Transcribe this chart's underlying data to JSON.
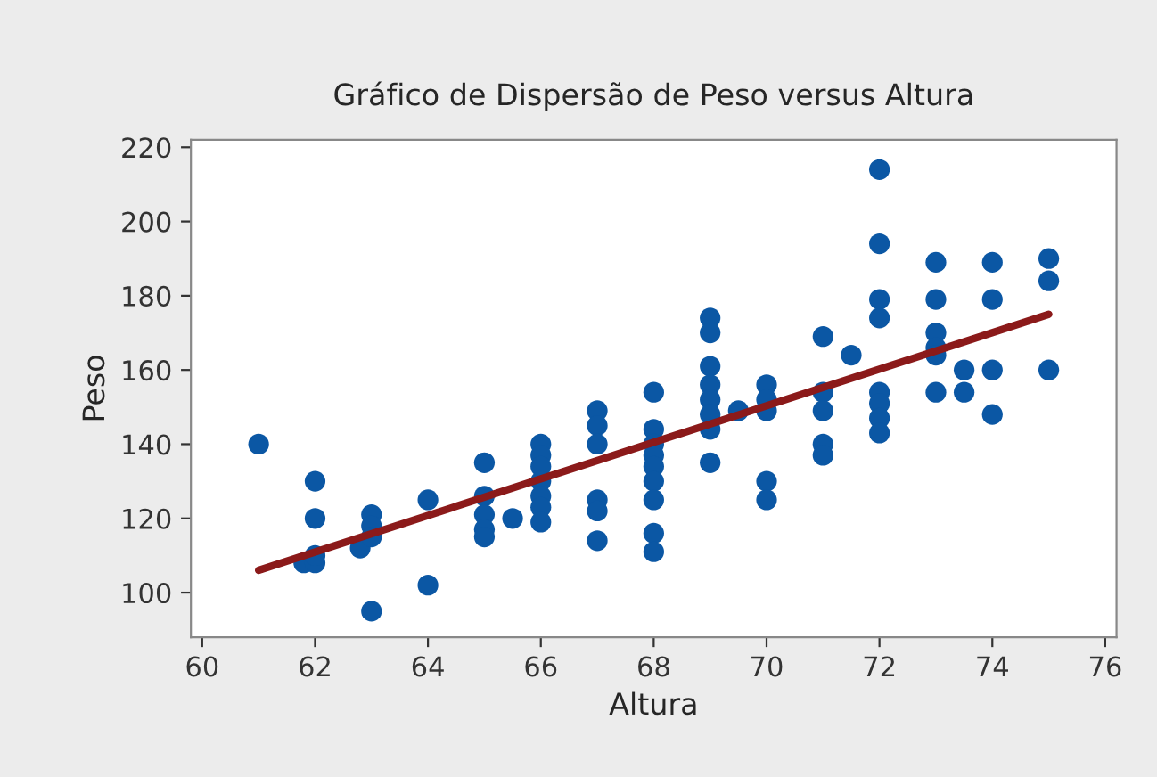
{
  "chart_data": {
    "type": "scatter",
    "title": "Gráfico de Dispersão de Peso versus Altura",
    "xlabel": "Altura",
    "ylabel": "Peso",
    "xlim": [
      59.8,
      76.2
    ],
    "xticks": [
      60,
      62,
      64,
      66,
      68,
      70,
      72,
      74,
      76
    ],
    "ylim": [
      88,
      222
    ],
    "yticks": [
      100,
      120,
      140,
      160,
      180,
      200,
      220
    ],
    "grid": false,
    "legend": false,
    "series": [
      {
        "marker": "circle",
        "color": "#0b57a4",
        "x": [
          61,
          61.8,
          62,
          62,
          62,
          62,
          62.8,
          63,
          63,
          63,
          63,
          64,
          64,
          65,
          65,
          65,
          65,
          65,
          65.5,
          66,
          66,
          66,
          66,
          66,
          66,
          66,
          67,
          67,
          67,
          67,
          67,
          67,
          68,
          68,
          68,
          68,
          68,
          68,
          68,
          68,
          68,
          69,
          69,
          69,
          69,
          69,
          69,
          69,
          69,
          69.5,
          70,
          70,
          70,
          70,
          70,
          71,
          71,
          71,
          71,
          71,
          71.5,
          72,
          72,
          72,
          72,
          72,
          72,
          72,
          72,
          73,
          73,
          73,
          73,
          73,
          73,
          73.5,
          73.5,
          74,
          74,
          74,
          74,
          75,
          75,
          75
        ],
        "values": [
          140,
          108,
          108,
          110,
          120,
          130,
          112,
          121,
          118,
          115,
          95,
          125,
          102,
          135,
          126,
          121,
          117,
          115,
          120,
          140,
          137,
          134,
          130,
          126,
          123,
          119,
          149,
          145,
          140,
          125,
          122,
          114,
          154,
          144,
          140,
          137,
          134,
          130,
          125,
          116,
          111,
          174,
          170,
          161,
          156,
          152,
          148,
          144,
          135,
          149,
          156,
          152,
          149,
          130,
          125,
          169,
          154,
          149,
          140,
          137,
          164,
          214,
          194,
          179,
          174,
          154,
          151,
          147,
          143,
          189,
          179,
          170,
          166,
          164,
          154,
          160,
          154,
          189,
          179,
          160,
          148,
          190,
          184,
          160
        ]
      },
      {
        "type": "line",
        "color": "#8b1a1a",
        "x": [
          61,
          75
        ],
        "values": [
          106,
          175
        ],
        "line_style": "solid"
      }
    ]
  }
}
